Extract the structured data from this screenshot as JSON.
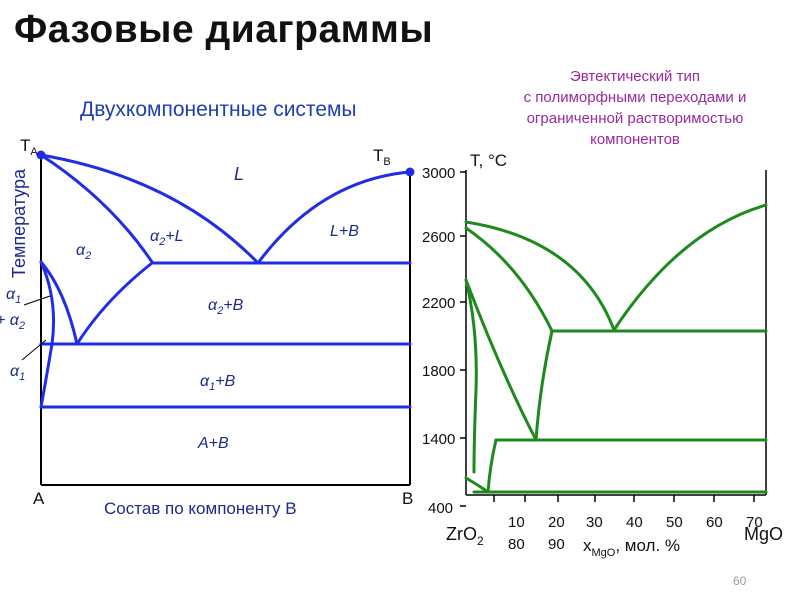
{
  "title": "Фазовые диаграммы",
  "left_diagram": {
    "subtitle": "Двухкомпонентные системы",
    "y_label": "Температура",
    "x_label": "Состав по компоненту B",
    "left_end": "A",
    "right_end": "B",
    "ta_main": "T",
    "ta_sub": "A",
    "tb_main": "T",
    "tb_sub": "B",
    "regions": {
      "L": "L",
      "L_B": "L+B",
      "a2_main": "α",
      "a2_sub": "2",
      "a2L_main": "α",
      "a2L_sub": "2",
      "a2L_rest": "+L",
      "a2B_main": "α",
      "a2B_sub": "2",
      "a2B_rest": "+B",
      "a1B_main": "α",
      "a1B_sub": "1",
      "a1B_rest": "+B",
      "AB": "A+B",
      "a1a2_top_main": "α",
      "a1a2_top_sub": "1",
      "a1a2_bottom_pre": "+ α",
      "a1a2_bottom_sub": "2",
      "a1_main": "α",
      "a1_sub": "1"
    },
    "colors": {
      "lines": "#1f2ee6",
      "frame": "#000000"
    }
  },
  "right_diagram": {
    "description": "Эвтектический тип\nс полиморфными переходами и\nограниченной растворимостью\nкомпонентов",
    "y_axis_title": "T, °C",
    "y_ticks": [
      "3000",
      "2600",
      "2200",
      "1800",
      "1400",
      "400"
    ],
    "x_ticks_top": [
      "10",
      "20",
      "30",
      "40",
      "50",
      "60",
      "70"
    ],
    "x_ticks_bottom": [
      "80",
      "90"
    ],
    "left_component_main": "ZrO",
    "left_component_sub": "2",
    "right_component": "MgO",
    "x_label_main": "x",
    "x_label_sub": "MgO",
    "x_label_rest": ", мол. %",
    "colors": {
      "lines": "#1e8a1e",
      "frame": "#000000"
    }
  },
  "page_number": "60"
}
